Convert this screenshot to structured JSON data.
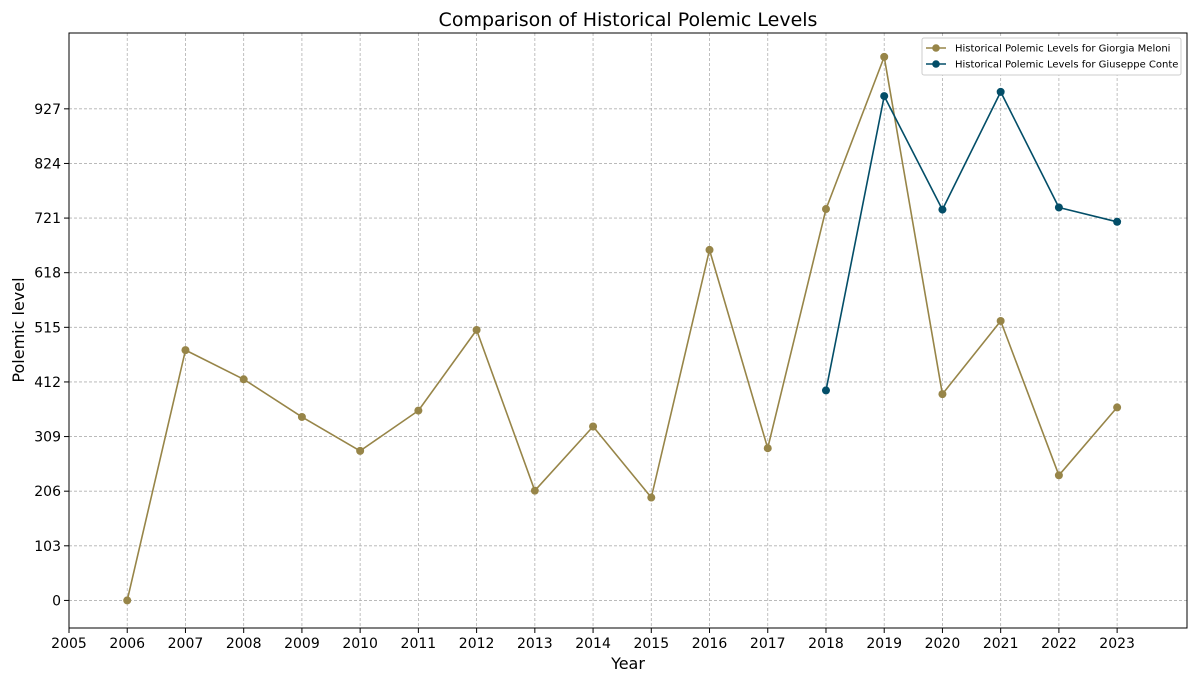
{
  "chart_data": {
    "type": "line",
    "title": "Comparison of Historical Polemic Levels",
    "xlabel": "Year",
    "ylabel": "Polemic level",
    "xlim": [
      2005,
      2024.2
    ],
    "ylim": [
      -52,
      1070
    ],
    "x_ticks": [
      2005,
      2006,
      2007,
      2008,
      2009,
      2010,
      2011,
      2012,
      2013,
      2014,
      2015,
      2016,
      2017,
      2018,
      2019,
      2020,
      2021,
      2022,
      2023
    ],
    "y_ticks": [
      0,
      103,
      206,
      309,
      412,
      515,
      618,
      721,
      824,
      927
    ],
    "grid": true,
    "legend_position": "top-right",
    "series": [
      {
        "name": "Historical Polemic Levels for Giorgia Meloni",
        "color": "#978548",
        "x": [
          2006,
          2007,
          2008,
          2009,
          2010,
          2011,
          2012,
          2013,
          2014,
          2015,
          2016,
          2017,
          2018,
          2019,
          2020,
          2021,
          2022,
          2023
        ],
        "values": [
          0,
          472,
          417,
          346,
          282,
          358,
          510,
          207,
          328,
          194,
          661,
          287,
          738,
          1025,
          389,
          527,
          236,
          364
        ]
      },
      {
        "name": "Historical Polemic Levels for Giuseppe Conte",
        "color": "#034e68",
        "x": [
          2018,
          2019,
          2020,
          2021,
          2022,
          2023
        ],
        "values": [
          396,
          951,
          737,
          959,
          741,
          714
        ]
      }
    ]
  }
}
